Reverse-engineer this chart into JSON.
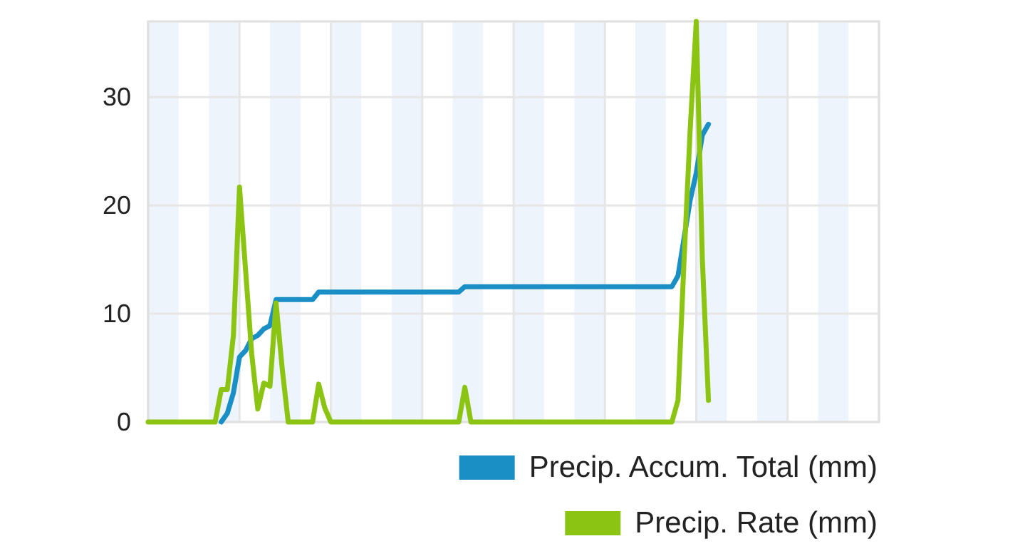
{
  "chart_data": {
    "type": "line",
    "categories": [
      null,
      null,
      null,
      null,
      null,
      null,
      null,
      null,
      null,
      null,
      null,
      null,
      null,
      null,
      null,
      null,
      null,
      null,
      null,
      null,
      null,
      null,
      null,
      null,
      null,
      null,
      null,
      null,
      null,
      null,
      null,
      null,
      null,
      null,
      null,
      null,
      null,
      null,
      null,
      null,
      null,
      null,
      null,
      null,
      null,
      null,
      null,
      null,
      null,
      null,
      null,
      null,
      null,
      null,
      null,
      null,
      null,
      null,
      null,
      null,
      null,
      null,
      null,
      null,
      null,
      null,
      null,
      null,
      null,
      null,
      null,
      null,
      null,
      null,
      null,
      null,
      null,
      null,
      null,
      null,
      null,
      null,
      null,
      null,
      null,
      null,
      null,
      null,
      null,
      null,
      null,
      null,
      null,
      null,
      null,
      null,
      null,
      null,
      null,
      null,
      null,
      null,
      null,
      null,
      null,
      null,
      null,
      null,
      null,
      null,
      null,
      null,
      null,
      null,
      null,
      null,
      null,
      null,
      null,
      null,
      null
    ],
    "series": [
      {
        "name": "Precip. Accum. Total (mm)",
        "color": "#1a8fc6",
        "values": [
          null,
          null,
          null,
          null,
          null,
          null,
          null,
          null,
          null,
          null,
          null,
          null,
          0,
          0.8,
          2.7,
          6,
          6.6,
          7.7,
          8,
          8.6,
          8.9,
          11.3,
          11.3,
          11.3,
          11.3,
          11.3,
          11.3,
          11.3,
          12,
          12,
          12,
          12,
          12,
          12,
          12,
          12,
          12,
          12,
          12,
          12,
          12,
          12,
          12,
          12,
          12,
          12,
          12,
          12,
          12,
          12,
          12,
          12,
          12.5,
          12.5,
          12.5,
          12.5,
          12.5,
          12.5,
          12.5,
          12.5,
          12.5,
          12.5,
          12.5,
          12.5,
          12.5,
          12.5,
          12.5,
          12.5,
          12.5,
          12.5,
          12.5,
          12.5,
          12.5,
          12.5,
          12.5,
          12.5,
          12.5,
          12.5,
          12.5,
          12.5,
          12.5,
          12.5,
          12.5,
          12.5,
          12.5,
          12.5,
          12.5,
          13.5,
          17,
          20.5,
          23,
          26.5,
          27.5,
          null,
          null,
          null,
          null,
          null,
          null,
          null,
          null,
          null,
          null,
          null,
          null,
          null,
          null,
          null,
          null,
          null,
          null,
          null,
          null,
          null,
          null,
          null,
          null,
          null,
          null,
          null,
          null
        ]
      },
      {
        "name": "Precip. Rate (mm)",
        "color": "#8cc414",
        "values": [
          0,
          0,
          0,
          0,
          0,
          0,
          0,
          0,
          0,
          0,
          0,
          0,
          3,
          3,
          8,
          21.7,
          14,
          6.3,
          1.2,
          3.6,
          3.3,
          11,
          5,
          0,
          0,
          0,
          0,
          0,
          3.5,
          1.3,
          0,
          0,
          0,
          0,
          0,
          0,
          0,
          0,
          0,
          0,
          0,
          0,
          0,
          0,
          0,
          0,
          0,
          0,
          0,
          0,
          0,
          0,
          3.2,
          0,
          0,
          0,
          0,
          0,
          0,
          0,
          0,
          0,
          0,
          0,
          0,
          0,
          0,
          0,
          0,
          0,
          0,
          0,
          0,
          0,
          0,
          0,
          0,
          0,
          0,
          0,
          0,
          0,
          0,
          0,
          0,
          0,
          0,
          2,
          15,
          27,
          37,
          15,
          2,
          null,
          null,
          null,
          null,
          null,
          null,
          null,
          null,
          null,
          null,
          null,
          null,
          null,
          null,
          null,
          null,
          null,
          null,
          null,
          null,
          null,
          null,
          null,
          null,
          null,
          null,
          null,
          null
        ]
      }
    ],
    "ylim": [
      0,
      37
    ],
    "yticks": [
      0,
      10,
      20,
      30
    ],
    "grid": true,
    "legend": "bottom right",
    "marker": "none",
    "line_style": "solid"
  }
}
